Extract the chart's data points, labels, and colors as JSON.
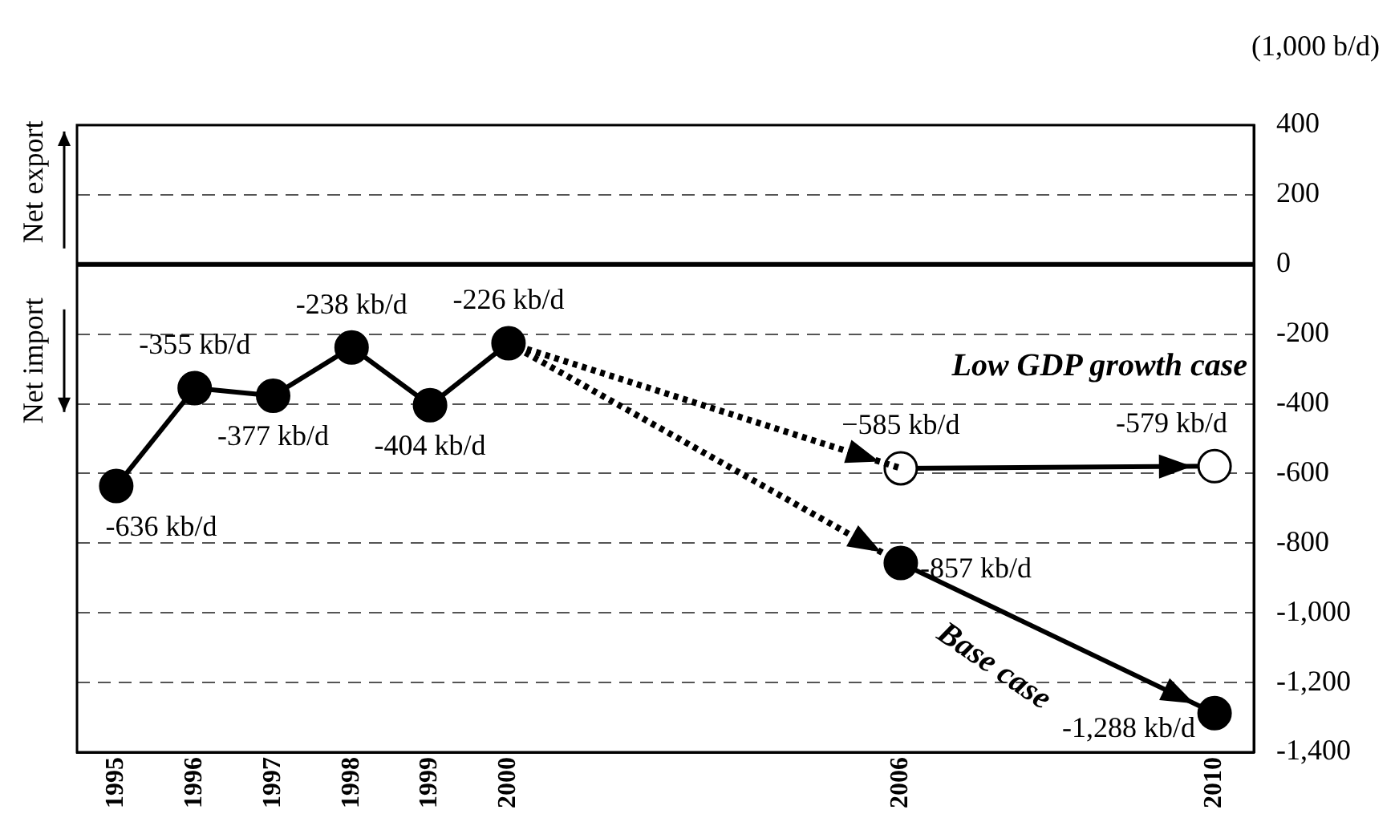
{
  "chart_data": {
    "type": "line",
    "categories": [
      "1995",
      "1996",
      "1997",
      "1998",
      "1999",
      "2000",
      null,
      null,
      null,
      null,
      "2006",
      null,
      null,
      null,
      "2010"
    ],
    "series": [
      {
        "color": "#000000",
        "marker": "circle",
        "line_style": "solid",
        "values": [
          -636,
          -355,
          -377,
          -238,
          -404,
          -226,
          null,
          null,
          null,
          null,
          null,
          null,
          null,
          null,
          null
        ],
        "value_labels": [
          "-636 kb/d",
          "-355 kb/d",
          "-377 kb/d",
          "-238 kb/d",
          "-404 kb/d",
          "-226 kb/d",
          null,
          null,
          null,
          null,
          null,
          null,
          null,
          null,
          null
        ]
      },
      {
        "color": "#000000",
        "line_style": "dotted",
        "values": [
          null,
          null,
          null,
          null,
          null,
          -226,
          null,
          null,
          null,
          null,
          -585,
          null,
          null,
          null,
          null
        ]
      },
      {
        "color": "#000000",
        "line_style": "dotted",
        "values": [
          null,
          null,
          null,
          null,
          null,
          -226,
          null,
          null,
          null,
          null,
          -857,
          null,
          null,
          null,
          null
        ]
      },
      {
        "name": "Low GDP growth case",
        "color": "#000000",
        "colors": [
          null,
          null,
          null,
          null,
          null,
          null,
          null,
          null,
          null,
          null,
          "#ffffff",
          null,
          null,
          null,
          "#ffffff"
        ],
        "marker": "circle",
        "line_style": "solid",
        "values": [
          null,
          null,
          null,
          null,
          null,
          null,
          null,
          null,
          null,
          null,
          -585,
          null,
          null,
          null,
          -579
        ],
        "value_labels": [
          null,
          null,
          null,
          null,
          null,
          null,
          null,
          null,
          null,
          null,
          "−585 kb/d",
          null,
          null,
          null,
          "-579 kb/d"
        ]
      },
      {
        "name": "Base case",
        "color": "#000000",
        "marker": "circle",
        "line_style": "solid",
        "values": [
          null,
          null,
          null,
          null,
          null,
          null,
          null,
          null,
          null,
          null,
          -857,
          null,
          null,
          null,
          -1288
        ],
        "value_labels": [
          null,
          null,
          null,
          null,
          null,
          null,
          null,
          null,
          null,
          null,
          "-857 kb/d",
          null,
          null,
          null,
          "-1,288 kb/d"
        ]
      }
    ],
    "ylabel": "(1,000 b/d)",
    "ylim": [
      -1400,
      400
    ],
    "yticks": [
      400,
      200,
      0,
      -200,
      -400,
      -600,
      -800,
      {
        "value": -1000,
        "label": "-1,000"
      },
      {
        "value": -1200,
        "label": "-1,200"
      },
      {
        "value": -1400,
        "label": "-1,400"
      }
    ],
    "grid": "y",
    "ref_lines": [
      {
        "axis": "y",
        "value": 0,
        "color": "#000000"
      }
    ],
    "legend": false,
    "annotations": [
      "Net export",
      "Net import"
    ]
  }
}
